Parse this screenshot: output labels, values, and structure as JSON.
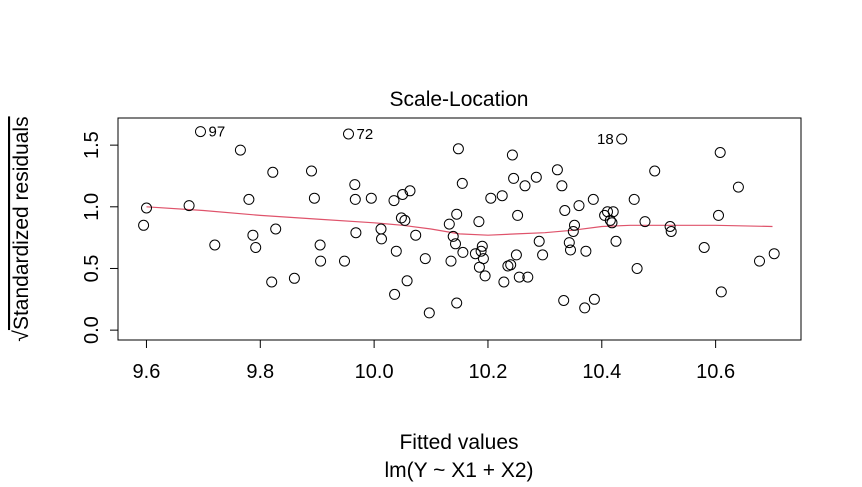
{
  "chart_data": {
    "type": "scatter",
    "title": "Scale-Location",
    "xlabel": "Fitted values",
    "subtitle": "lm(Y ~ X1 + X2)",
    "ylabel": "Standardized residuals",
    "ylabel_prefix": "√",
    "xlim": [
      9.55,
      10.75
    ],
    "ylim": [
      -0.08,
      1.72
    ],
    "x_ticks": [
      9.6,
      9.8,
      10.0,
      10.2,
      10.4,
      10.6
    ],
    "x_tick_labels": [
      "9.6",
      "9.8",
      "10.0",
      "10.2",
      "10.4",
      "10.6"
    ],
    "y_ticks": [
      0.0,
      0.5,
      1.0,
      1.5
    ],
    "y_tick_labels": [
      "0.0",
      "0.5",
      "1.0",
      "1.5"
    ],
    "grid": false,
    "colors": {
      "points": "#000000",
      "smooth": "#df536b",
      "frame": "#000000"
    },
    "points": [
      [
        9.595,
        0.85
      ],
      [
        9.6,
        0.99
      ],
      [
        9.675,
        1.01
      ],
      [
        9.695,
        1.61
      ],
      [
        9.72,
        0.69
      ],
      [
        9.765,
        1.46
      ],
      [
        9.78,
        1.06
      ],
      [
        9.787,
        0.77
      ],
      [
        9.792,
        0.67
      ],
      [
        9.82,
        0.39
      ],
      [
        9.822,
        1.28
      ],
      [
        9.827,
        0.82
      ],
      [
        9.86,
        0.42
      ],
      [
        9.89,
        1.29
      ],
      [
        9.895,
        1.07
      ],
      [
        9.905,
        0.69
      ],
      [
        9.906,
        0.56
      ],
      [
        9.948,
        0.56
      ],
      [
        9.955,
        1.59
      ],
      [
        9.966,
        1.18
      ],
      [
        9.967,
        1.06
      ],
      [
        9.968,
        0.79
      ],
      [
        9.995,
        1.07
      ],
      [
        10.012,
        0.82
      ],
      [
        10.013,
        0.74
      ],
      [
        10.035,
        1.05
      ],
      [
        10.036,
        0.29
      ],
      [
        10.039,
        0.64
      ],
      [
        10.048,
        0.91
      ],
      [
        10.05,
        1.1
      ],
      [
        10.054,
        0.89
      ],
      [
        10.058,
        0.4
      ],
      [
        10.063,
        1.13
      ],
      [
        10.073,
        0.77
      ],
      [
        10.09,
        0.58
      ],
      [
        10.097,
        0.14
      ],
      [
        10.132,
        0.86
      ],
      [
        10.135,
        0.56
      ],
      [
        10.139,
        0.76
      ],
      [
        10.143,
        0.7
      ],
      [
        10.145,
        0.94
      ],
      [
        10.145,
        0.22
      ],
      [
        10.148,
        1.47
      ],
      [
        10.155,
        1.19
      ],
      [
        10.156,
        0.63
      ],
      [
        10.178,
        0.62
      ],
      [
        10.184,
        0.88
      ],
      [
        10.185,
        0.51
      ],
      [
        10.188,
        0.64
      ],
      [
        10.19,
        0.68
      ],
      [
        10.192,
        0.58
      ],
      [
        10.195,
        0.44
      ],
      [
        10.205,
        1.07
      ],
      [
        10.225,
        1.09
      ],
      [
        10.228,
        0.39
      ],
      [
        10.235,
        0.52
      ],
      [
        10.24,
        0.53
      ],
      [
        10.243,
        1.42
      ],
      [
        10.245,
        1.23
      ],
      [
        10.25,
        0.61
      ],
      [
        10.252,
        0.93
      ],
      [
        10.255,
        0.43
      ],
      [
        10.265,
        1.17
      ],
      [
        10.27,
        0.43
      ],
      [
        10.285,
        1.24
      ],
      [
        10.29,
        0.72
      ],
      [
        10.296,
        0.61
      ],
      [
        10.322,
        1.3
      ],
      [
        10.33,
        1.17
      ],
      [
        10.335,
        0.97
      ],
      [
        10.333,
        0.24
      ],
      [
        10.343,
        0.71
      ],
      [
        10.345,
        0.65
      ],
      [
        10.35,
        0.8
      ],
      [
        10.352,
        0.85
      ],
      [
        10.36,
        1.01
      ],
      [
        10.37,
        0.18
      ],
      [
        10.372,
        0.64
      ],
      [
        10.385,
        1.06
      ],
      [
        10.387,
        0.25
      ],
      [
        10.405,
        0.93
      ],
      [
        10.41,
        0.96
      ],
      [
        10.415,
        0.89
      ],
      [
        10.418,
        0.87
      ],
      [
        10.42,
        0.96
      ],
      [
        10.425,
        0.72
      ],
      [
        10.435,
        1.55
      ],
      [
        10.457,
        1.06
      ],
      [
        10.462,
        0.5
      ],
      [
        10.476,
        0.88
      ],
      [
        10.493,
        1.29
      ],
      [
        10.52,
        0.84
      ],
      [
        10.522,
        0.8
      ],
      [
        10.58,
        0.67
      ],
      [
        10.605,
        0.93
      ],
      [
        10.608,
        1.44
      ],
      [
        10.61,
        0.31
      ],
      [
        10.64,
        1.16
      ],
      [
        10.677,
        0.56
      ],
      [
        10.703,
        0.62
      ]
    ],
    "smooth_line": [
      [
        9.6,
        1.0
      ],
      [
        9.7,
        0.97
      ],
      [
        9.8,
        0.93
      ],
      [
        9.9,
        0.9
      ],
      [
        10.0,
        0.87
      ],
      [
        10.05,
        0.85
      ],
      [
        10.1,
        0.82
      ],
      [
        10.15,
        0.78
      ],
      [
        10.2,
        0.77
      ],
      [
        10.25,
        0.78
      ],
      [
        10.3,
        0.79
      ],
      [
        10.35,
        0.81
      ],
      [
        10.4,
        0.84
      ],
      [
        10.45,
        0.85
      ],
      [
        10.5,
        0.85
      ],
      [
        10.6,
        0.85
      ],
      [
        10.7,
        0.84
      ]
    ],
    "annotations": [
      {
        "text": "97",
        "x": 9.695,
        "y": 1.61,
        "side": "right"
      },
      {
        "text": "72",
        "x": 9.955,
        "y": 1.59,
        "side": "right"
      },
      {
        "text": "18",
        "x": 10.435,
        "y": 1.55,
        "side": "left"
      }
    ]
  }
}
